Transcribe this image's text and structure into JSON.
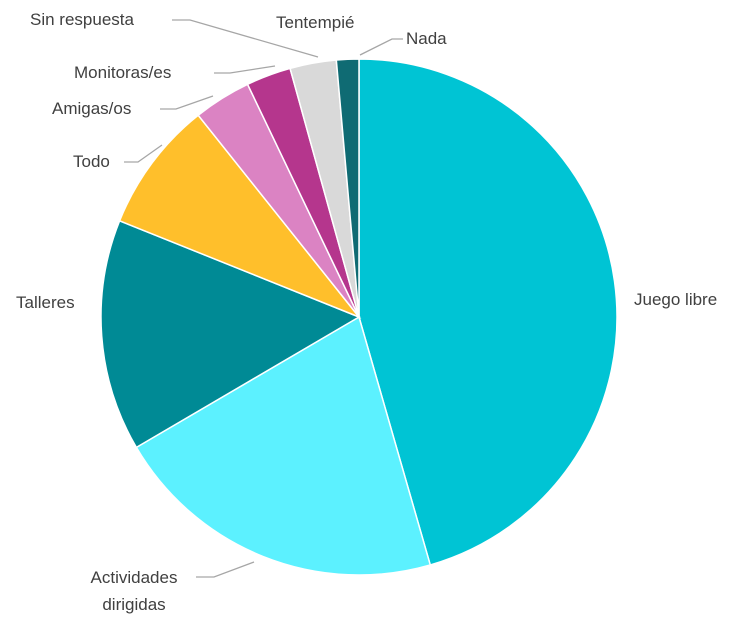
{
  "chart_data": {
    "type": "pie",
    "title": "",
    "start_angle_deg": 0,
    "direction": "clockwise",
    "legend": "none",
    "slices": [
      {
        "label": "Juego libre",
        "value": 45.5,
        "color": "#00C4D4"
      },
      {
        "label": "Actividades dirigidas",
        "label_lines": [
          "Actividades",
          "dirigidas"
        ],
        "value": 21.0,
        "color": "#5CF1FF"
      },
      {
        "label": "Talleres",
        "value": 14.5,
        "color": "#008A95"
      },
      {
        "label": "Todo",
        "value": 8.2,
        "color": "#FFBF2B"
      },
      {
        "label": "Amigas/os",
        "value": 3.6,
        "color": "#DB83C3"
      },
      {
        "label": "Monitoras/es",
        "value": 2.8,
        "color": "#B5368D"
      },
      {
        "label": "Sin respuesta",
        "value": 2.9,
        "color": "#D9D9D9"
      },
      {
        "label": "Tentempié",
        "value": 0.0,
        "color": "#C8C8C8"
      },
      {
        "label": "Nada",
        "value": 1.4,
        "color": "#0F6B73"
      }
    ]
  }
}
